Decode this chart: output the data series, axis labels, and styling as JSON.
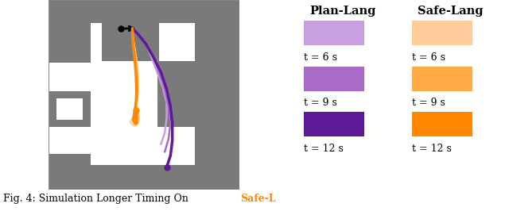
{
  "figure_width": 6.4,
  "figure_height": 2.66,
  "dpi": 100,
  "bg_color": "#ffffff",
  "gray": "#7a7a7a",
  "plan_lang_colors": [
    "#c8a0e0",
    "#a86cc8",
    "#5c1a99"
  ],
  "safe_lang_colors": [
    "#ffcc99",
    "#ffaa44",
    "#ff8800"
  ],
  "plan_lang_label": "Plan-Lang",
  "safe_lang_label": "Safe-Lang",
  "time_labels": [
    "t = 6 s",
    "t = 9 s",
    "t = 12 s"
  ],
  "header_fontsize": 10.5,
  "label_fontsize": 9,
  "caption_fontsize": 9,
  "caption_orange_color": "#ff8800"
}
